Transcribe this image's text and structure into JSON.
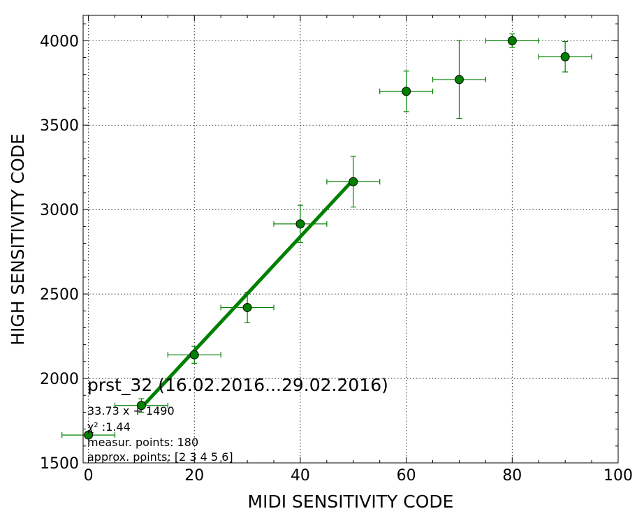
{
  "chart_data": {
    "type": "scatter",
    "xlabel": "MIDI SENSITIVITY CODE",
    "ylabel": "HIGH SENSITIVITY CODE",
    "xlim": [
      -1,
      100
    ],
    "ylim": [
      1500,
      4150
    ],
    "xticks": [
      0,
      20,
      40,
      60,
      80,
      100
    ],
    "yticks": [
      1500,
      2000,
      2500,
      3000,
      3500,
      4000
    ],
    "grid": true,
    "colors": {
      "points": "#008000",
      "fit_line": "#008000",
      "axes": "#000000",
      "grid": "#000000"
    },
    "points": [
      {
        "x": 0,
        "y": 1665,
        "xerr": 5,
        "yerr": 0
      },
      {
        "x": 10,
        "y": 1840,
        "xerr": 5,
        "yerr": 40
      },
      {
        "x": 20,
        "y": 2140,
        "xerr": 5,
        "yerr": 50
      },
      {
        "x": 30,
        "y": 2420,
        "xerr": 5,
        "yerr": 90
      },
      {
        "x": 40,
        "y": 2915,
        "xerr": 5,
        "yerr": 110
      },
      {
        "x": 50,
        "y": 3165,
        "xerr": 5,
        "yerr": 150
      },
      {
        "x": 60,
        "y": 3700,
        "xerr": 5,
        "yerr": 120
      },
      {
        "x": 70,
        "y": 3770,
        "xerr": 5,
        "yerr": 230
      },
      {
        "x": 80,
        "y": 4000,
        "xerr": 5,
        "yerr": 40
      },
      {
        "x": 90,
        "y": 3905,
        "xerr": 5,
        "yerr": 90
      }
    ],
    "fit": {
      "slope": 33.73,
      "intercept": 1490,
      "x_range": [
        10,
        50
      ]
    },
    "annotations": {
      "title": "prst_32 (16.02.2016...29.02.2016)",
      "formula": "33.73 x + 1490",
      "chi2": "χ² :1.44",
      "measur_points": "measur. points: 180",
      "approx_points": "approx. points: [2 3 4 5 6]"
    }
  }
}
